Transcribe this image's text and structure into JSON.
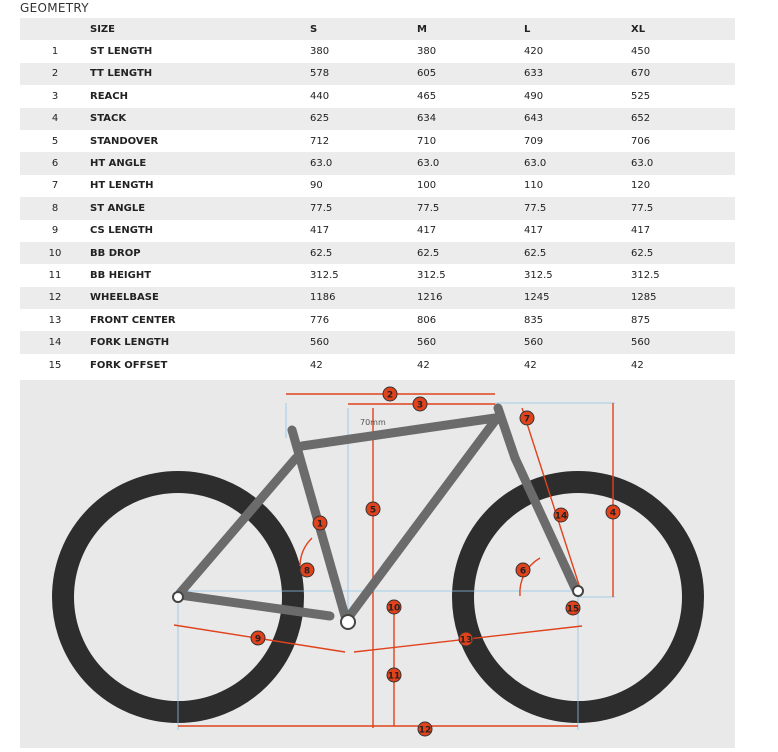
{
  "header": {
    "title": "GEOMETRY"
  },
  "table": {
    "columns": [
      "SIZE",
      "S",
      "M",
      "L",
      "XL"
    ],
    "rows": [
      [
        "1",
        "ST LENGTH",
        "380",
        "380",
        "420",
        "450"
      ],
      [
        "2",
        "TT LENGTH",
        "578",
        "605",
        "633",
        "670"
      ],
      [
        "3",
        "REACH",
        "440",
        "465",
        "490",
        "525"
      ],
      [
        "4",
        "STACK",
        "625",
        "634",
        "643",
        "652"
      ],
      [
        "5",
        "STANDOVER",
        "712",
        "710",
        "709",
        "706"
      ],
      [
        "6",
        "HT ANGLE",
        "63.0",
        "63.0",
        "63.0",
        "63.0"
      ],
      [
        "7",
        "HT LENGTH",
        "90",
        "100",
        "110",
        "120"
      ],
      [
        "8",
        "ST ANGLE",
        "77.5",
        "77.5",
        "77.5",
        "77.5"
      ],
      [
        "9",
        "CS LENGTH",
        "417",
        "417",
        "417",
        "417"
      ],
      [
        "10",
        "BB DROP",
        "62.5",
        "62.5",
        "62.5",
        "62.5"
      ],
      [
        "11",
        "BB HEIGHT",
        "312.5",
        "312.5",
        "312.5",
        "312.5"
      ],
      [
        "12",
        "WHEELBASE",
        "1186",
        "1216",
        "1245",
        "1285"
      ],
      [
        "13",
        "FRONT CENTER",
        "776",
        "806",
        "835",
        "875"
      ],
      [
        "14",
        "FORK LENGTH",
        "560",
        "560",
        "560",
        "560"
      ],
      [
        "15",
        "FORK OFFSET",
        "42",
        "42",
        "42",
        "42"
      ]
    ]
  },
  "diagram": {
    "note": "70mm",
    "markers": [
      "1",
      "2",
      "3",
      "4",
      "5",
      "6",
      "7",
      "8",
      "9",
      "10",
      "11",
      "12",
      "13",
      "14",
      "15"
    ]
  }
}
